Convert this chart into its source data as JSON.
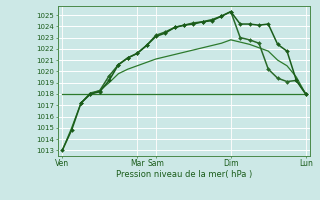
{
  "bg_color": "#cce8e6",
  "grid_color": "#ffffff",
  "line_dark": "#1a5c1a",
  "line_mid": "#2d7a2d",
  "xlabel": "Pression niveau de la mer( hPa )",
  "ylim": [
    1012.5,
    1025.8
  ],
  "yticks": [
    1013,
    1014,
    1015,
    1016,
    1017,
    1018,
    1019,
    1020,
    1021,
    1022,
    1023,
    1024,
    1025
  ],
  "xtick_labels": [
    "Ven",
    "Mar",
    "Sam",
    "Dim",
    "Lun"
  ],
  "xtick_positions": [
    0,
    16,
    20,
    36,
    52
  ],
  "vline_positions": [
    0,
    16,
    20,
    36,
    52
  ],
  "line1_x": [
    0,
    2,
    4,
    6,
    8,
    10,
    12,
    14,
    16,
    18,
    20,
    22,
    24,
    26,
    28,
    30,
    32,
    34,
    36,
    38,
    40,
    42,
    44,
    46,
    48,
    50,
    52
  ],
  "line1_y": [
    1013.0,
    1014.8,
    1017.2,
    1018.0,
    1018.2,
    1019.2,
    1020.6,
    1021.2,
    1021.6,
    1022.3,
    1023.1,
    1023.4,
    1023.9,
    1024.1,
    1024.2,
    1024.4,
    1024.5,
    1024.9,
    1025.3,
    1024.2,
    1024.2,
    1024.1,
    1024.2,
    1022.4,
    1021.8,
    1019.2,
    1018.0
  ],
  "line2_x": [
    4,
    6,
    8,
    10,
    12,
    14,
    16,
    18,
    20,
    22,
    24,
    26,
    28,
    30,
    32,
    34,
    36,
    38,
    40,
    42,
    44,
    46,
    48,
    50,
    52
  ],
  "line2_y": [
    1017.2,
    1018.0,
    1018.3,
    1019.6,
    1020.6,
    1021.2,
    1021.6,
    1022.3,
    1023.2,
    1023.5,
    1023.9,
    1024.1,
    1024.3,
    1024.4,
    1024.6,
    1024.9,
    1025.3,
    1023.0,
    1022.8,
    1022.5,
    1020.2,
    1019.4,
    1019.1,
    1019.2,
    1018.0
  ],
  "line3_x": [
    0,
    8,
    16,
    20,
    36,
    52
  ],
  "line3_y": [
    1018.0,
    1018.0,
    1018.0,
    1018.0,
    1018.0,
    1018.0
  ],
  "line4_x": [
    0,
    2,
    4,
    6,
    8,
    10,
    12,
    14,
    16,
    18,
    20,
    22,
    24,
    26,
    28,
    30,
    32,
    34,
    36,
    38,
    40,
    42,
    44,
    46,
    48,
    50,
    52
  ],
  "line4_y": [
    1013.0,
    1015.0,
    1017.2,
    1018.1,
    1018.3,
    1019.0,
    1019.8,
    1020.2,
    1020.5,
    1020.8,
    1021.1,
    1021.3,
    1021.5,
    1021.7,
    1021.9,
    1022.1,
    1022.3,
    1022.5,
    1022.8,
    1022.6,
    1022.4,
    1022.1,
    1021.8,
    1021.0,
    1020.5,
    1019.5,
    1018.0
  ]
}
